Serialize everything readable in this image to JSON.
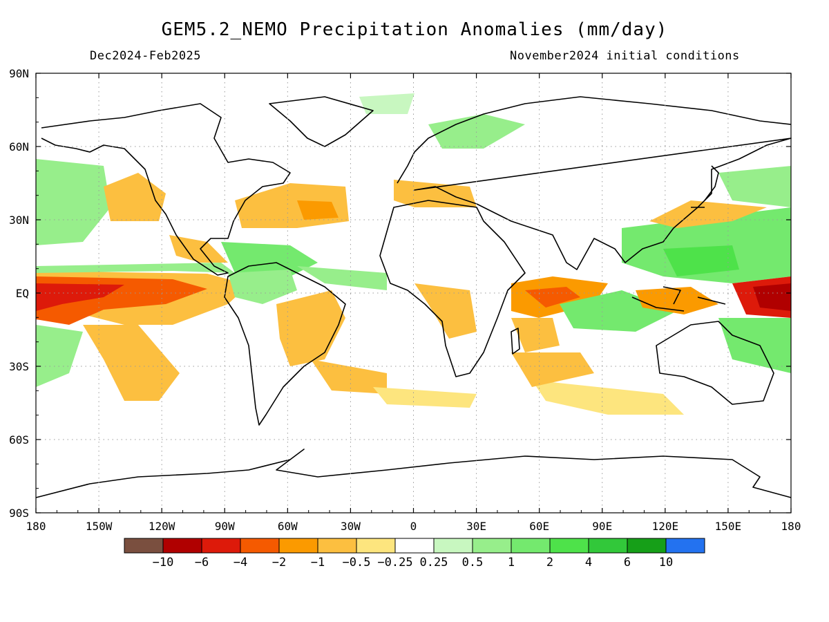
{
  "map": {
    "title": "GEM5.2_NEMO Precipitation Anomalies (mm/day)",
    "period": "Dec2024-Feb2025",
    "init": "November2024 initial conditions",
    "lat_labels": [
      "90N",
      "60N",
      "30N",
      "EQ",
      "30S",
      "60S",
      "90S"
    ],
    "lon_labels": [
      "180",
      "150W",
      "120W",
      "90W",
      "60W",
      "30W",
      "0",
      "30E",
      "60E",
      "90E",
      "120E",
      "150E",
      "180"
    ],
    "colorbar": {
      "colors": [
        "#7a4f3f",
        "#b00000",
        "#dd1a0a",
        "#f55a00",
        "#fb9a00",
        "#fcbf40",
        "#fde57e",
        "#ffffff",
        "#c8f7c0",
        "#97ee8b",
        "#74e96e",
        "#4ee24a",
        "#32c83a",
        "#169f18",
        "#2372f0"
      ],
      "labels": [
        "-10",
        "-6",
        "-4",
        "-2",
        "-1",
        "-0.5",
        "-0.25",
        "0.25",
        "0.5",
        "1",
        "2",
        "4",
        "6",
        "10"
      ]
    }
  }
}
